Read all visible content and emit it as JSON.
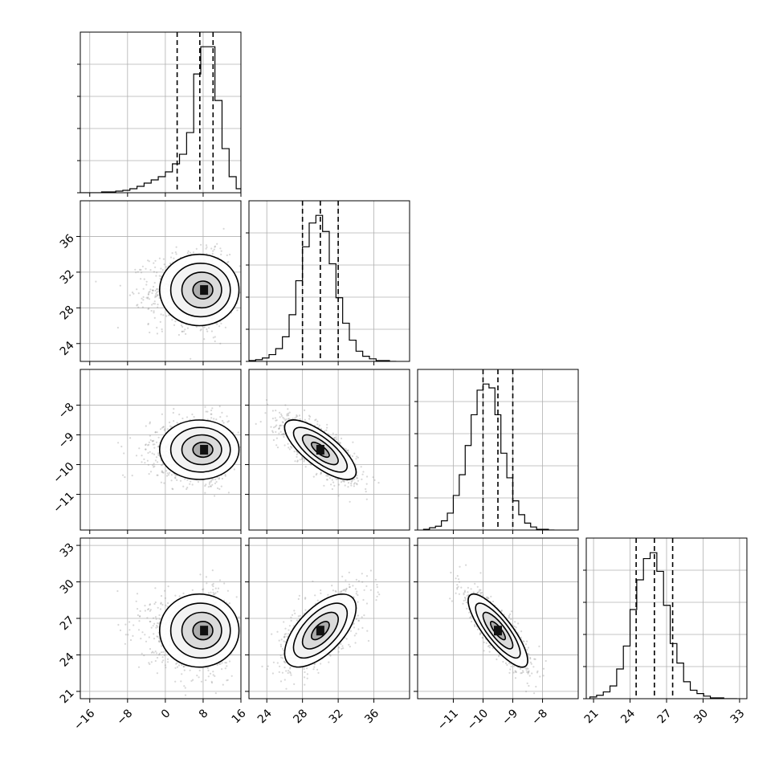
{
  "chart_data": {
    "type": "corner",
    "parameters": [
      {
        "range": [
          -18,
          16
        ],
        "ticks": [
          -16,
          -8,
          0,
          8,
          16
        ],
        "tick_labels": [
          "−16",
          "−8",
          "0",
          "8",
          "16"
        ],
        "mean": 8.2,
        "std": 4.2,
        "skew": "left",
        "quantiles": [
          2.5,
          7.3,
          10.1
        ],
        "histogram": {
          "bins": [
            -18,
            -16.5,
            -15,
            -13.5,
            -12,
            -10.5,
            -9,
            -7.5,
            -6,
            -4.5,
            -3,
            -1.5,
            0,
            1.5,
            3,
            4.5,
            6,
            7.5,
            9,
            10.5,
            12,
            13.5,
            15,
            16
          ],
          "counts": [
            0,
            0,
            0,
            1,
            1,
            2,
            3,
            5,
            8,
            12,
            16,
            20,
            26,
            36,
            48,
            75,
            148,
            182,
            182,
            115,
            55,
            20,
            5
          ]
        }
      },
      {
        "range": [
          22,
          40
        ],
        "ticks": [
          24,
          28,
          32,
          36
        ],
        "tick_labels": [
          "24",
          "28",
          "32",
          "36"
        ],
        "mean": 30.0,
        "std": 2.0,
        "quantiles": [
          28.0,
          30.0,
          32.0
        ],
        "histogram": {
          "bins": [
            22,
            22.75,
            23.5,
            24.25,
            25,
            25.75,
            26.5,
            27.25,
            28,
            28.75,
            29.5,
            30.25,
            31,
            31.75,
            32.5,
            33.25,
            34,
            34.75,
            35.5,
            36.25,
            37,
            37.75,
            38.5
          ],
          "counts": [
            1,
            2,
            4,
            8,
            15,
            29,
            55,
            95,
            135,
            163,
            172,
            153,
            115,
            75,
            45,
            25,
            12,
            6,
            3,
            1,
            1,
            0
          ]
        }
      },
      {
        "range": [
          -12.2,
          -6.8
        ],
        "ticks": [
          -11,
          -10,
          -9,
          -8
        ],
        "tick_labels": [
          "−11",
          "−10",
          "−9",
          "−8"
        ],
        "mean": -9.5,
        "std": 0.5,
        "quantiles": [
          -10.0,
          -9.5,
          -9.0
        ],
        "histogram": {
          "bins": [
            -12.0,
            -11.8,
            -11.6,
            -11.4,
            -11.2,
            -11.0,
            -10.8,
            -10.6,
            -10.4,
            -10.2,
            -10.0,
            -9.8,
            -9.6,
            -9.4,
            -9.2,
            -9.0,
            -8.8,
            -8.6,
            -8.4,
            -8.2,
            -8.0,
            -7.8,
            -7.6
          ],
          "counts": [
            1,
            3,
            5,
            12,
            22,
            45,
            72,
            110,
            150,
            182,
            190,
            185,
            150,
            100,
            68,
            38,
            20,
            9,
            4,
            1,
            1,
            0
          ]
        }
      },
      {
        "range": [
          20.4,
          33.6
        ],
        "ticks": [
          21,
          24,
          27,
          30,
          33
        ],
        "tick_labels": [
          "21",
          "24",
          "27",
          "30",
          "33"
        ],
        "mean": 26.0,
        "std": 1.5,
        "quantiles": [
          24.5,
          26.0,
          27.5
        ],
        "histogram": {
          "bins": [
            20.7,
            21.25,
            21.8,
            22.35,
            22.9,
            23.45,
            24.0,
            24.55,
            25.1,
            25.65,
            26.2,
            26.75,
            27.3,
            27.85,
            28.4,
            28.95,
            29.5,
            30.05,
            30.6,
            31.15,
            31.7,
            32.25,
            32.8
          ],
          "counts": [
            2,
            4,
            8,
            15,
            35,
            62,
            105,
            140,
            165,
            172,
            150,
            110,
            65,
            42,
            20,
            10,
            6,
            3,
            1,
            1,
            0,
            0
          ]
        }
      }
    ],
    "correlations": [
      [
        1.0,
        0.0,
        0.0,
        0.0
      ],
      [
        0.0,
        1.0,
        -0.75,
        0.62
      ],
      [
        0.0,
        -0.75,
        1.0,
        -0.82
      ],
      [
        0.0,
        0.62,
        -0.82,
        1.0
      ]
    ],
    "contour_levels_sigma": [
      0.5,
      1.0,
      1.5,
      2.0
    ],
    "quantile_line_style": "dashed",
    "grid": true,
    "title": "",
    "xlabel": "",
    "ylabel": ""
  }
}
